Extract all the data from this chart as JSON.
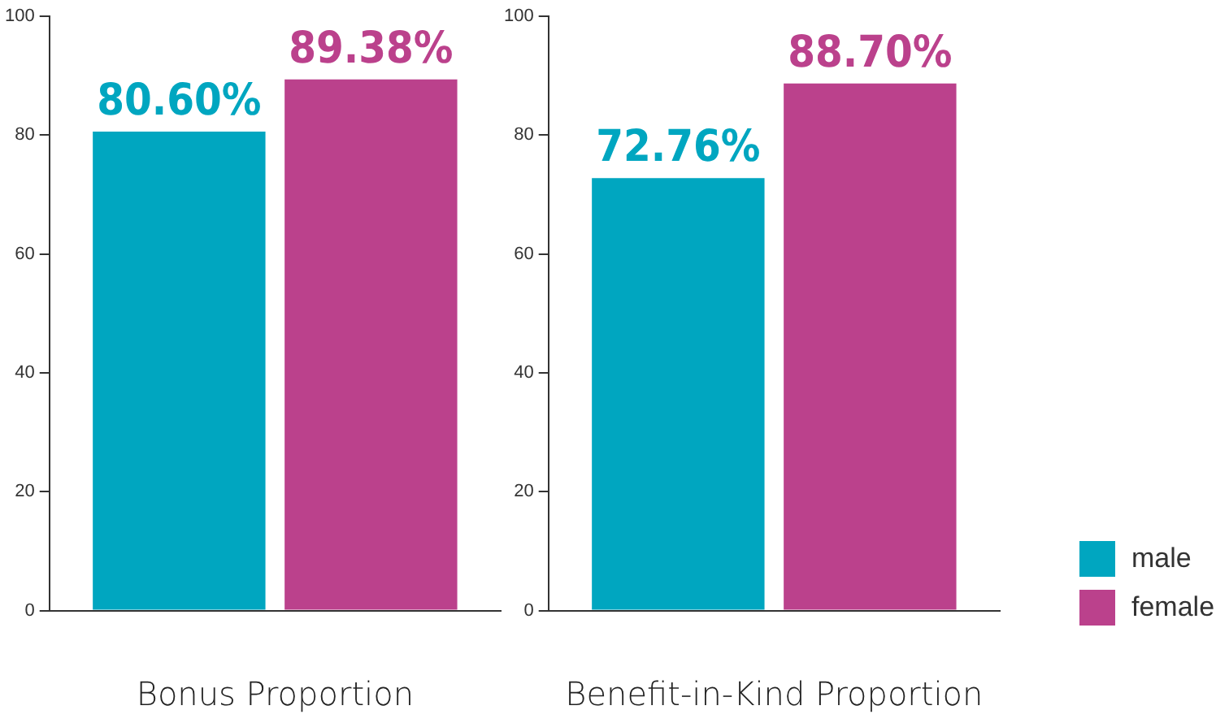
{
  "chart_data": [
    {
      "type": "bar",
      "xlabel": "Bonus Proportion",
      "categories": [
        null
      ],
      "series": [
        {
          "color": "#00a6c0",
          "values": [
            80.6
          ],
          "value_labels": [
            "80.60%"
          ]
        },
        {
          "color": "#bb418c",
          "values": [
            89.38
          ],
          "value_labels": [
            "89.38%"
          ]
        }
      ],
      "ylim": [
        0,
        100
      ],
      "yticks": [
        0,
        20,
        40,
        60,
        80,
        100
      ],
      "grid": false,
      "legend": false
    },
    {
      "type": "bar",
      "xlabel": "Benefit-in-Kind Proportion",
      "categories": [
        null
      ],
      "series": [
        {
          "name": "male",
          "color": "#00a6c0",
          "values": [
            72.76
          ],
          "value_labels": [
            "72.76%"
          ]
        },
        {
          "name": "female",
          "color": "#bb418c",
          "values": [
            88.7
          ],
          "value_labels": [
            "88.70%"
          ]
        }
      ],
      "ylim": [
        0,
        100
      ],
      "yticks": [
        0,
        20,
        40,
        60,
        80,
        100
      ],
      "grid": false,
      "legend": "right"
    }
  ]
}
